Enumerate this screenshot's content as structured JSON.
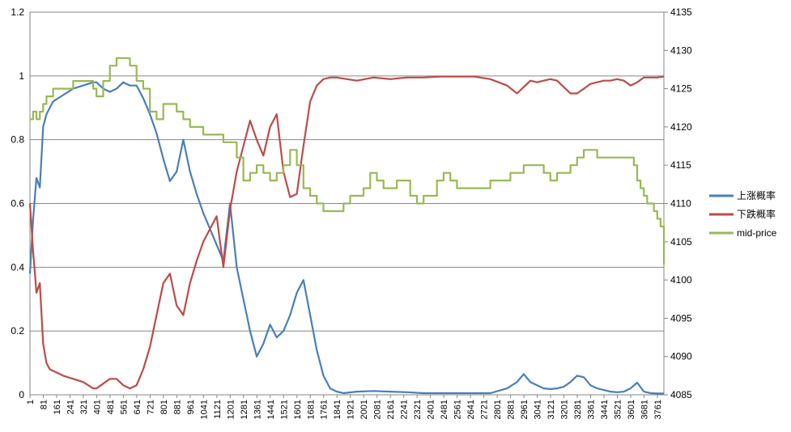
{
  "chart_data": {
    "type": "line",
    "title": "",
    "xlabel": "",
    "ylabel": "",
    "x_tick_labels": [
      "1",
      "81",
      "161",
      "241",
      "321",
      "401",
      "481",
      "561",
      "641",
      "721",
      "801",
      "881",
      "961",
      "1041",
      "1121",
      "1201",
      "1281",
      "1361",
      "1441",
      "1521",
      "1601",
      "1681",
      "1761",
      "1841",
      "1921",
      "2001",
      "2081",
      "2161",
      "2241",
      "2321",
      "2401",
      "2481",
      "2561",
      "2641",
      "2721",
      "2801",
      "2881",
      "2961",
      "3041",
      "3121",
      "3201",
      "3281",
      "3361",
      "3441",
      "3521",
      "3601",
      "3681",
      "3761"
    ],
    "xlim": [
      1,
      3800
    ],
    "y_left": {
      "lim": [
        0,
        1.2
      ],
      "tick_labels": [
        "0",
        "0.2",
        "0.4",
        "0.6",
        "0.8",
        "1",
        "1.2"
      ]
    },
    "y_right": {
      "lim": [
        4085,
        4135
      ],
      "tick_labels": [
        "4085",
        "4090",
        "4095",
        "4100",
        "4105",
        "4110",
        "4115",
        "4120",
        "4125",
        "4130",
        "4135"
      ]
    },
    "grid": "horizontal",
    "legend_position": "right",
    "series": [
      {
        "name": "上涨概率",
        "color": "#4a7ebb",
        "axis": "left",
        "x": [
          1,
          20,
          40,
          60,
          80,
          100,
          140,
          200,
          260,
          320,
          380,
          400,
          440,
          480,
          520,
          560,
          600,
          640,
          680,
          720,
          760,
          800,
          840,
          880,
          920,
          960,
          1000,
          1040,
          1080,
          1120,
          1160,
          1200,
          1240,
          1280,
          1320,
          1360,
          1400,
          1440,
          1480,
          1520,
          1560,
          1600,
          1640,
          1680,
          1720,
          1760,
          1800,
          1840,
          1880,
          1960,
          2060,
          2160,
          2260,
          2360,
          2460,
          2560,
          2660,
          2760,
          2860,
          2920,
          2960,
          3000,
          3040,
          3080,
          3120,
          3160,
          3200,
          3240,
          3280,
          3320,
          3360,
          3400,
          3440,
          3480,
          3520,
          3560,
          3600,
          3640,
          3680,
          3720,
          3760,
          3800
        ],
        "y": [
          0.38,
          0.55,
          0.68,
          0.65,
          0.84,
          0.88,
          0.92,
          0.94,
          0.96,
          0.97,
          0.98,
          0.98,
          0.96,
          0.95,
          0.96,
          0.98,
          0.97,
          0.97,
          0.93,
          0.88,
          0.82,
          0.74,
          0.67,
          0.7,
          0.8,
          0.7,
          0.63,
          0.57,
          0.52,
          0.47,
          0.42,
          0.6,
          0.4,
          0.3,
          0.2,
          0.12,
          0.16,
          0.22,
          0.18,
          0.2,
          0.25,
          0.32,
          0.36,
          0.25,
          0.14,
          0.06,
          0.02,
          0.01,
          0.005,
          0.01,
          0.012,
          0.01,
          0.008,
          0.005,
          0.005,
          0.005,
          0.005,
          0.005,
          0.02,
          0.04,
          0.065,
          0.04,
          0.03,
          0.02,
          0.018,
          0.02,
          0.025,
          0.04,
          0.06,
          0.055,
          0.03,
          0.02,
          0.015,
          0.01,
          0.008,
          0.01,
          0.02,
          0.038,
          0.01,
          0.005,
          0.004,
          0.004
        ]
      },
      {
        "name": "下跌概率",
        "color": "#be4b48",
        "axis": "left",
        "x": [
          1,
          20,
          40,
          60,
          80,
          100,
          120,
          160,
          200,
          260,
          320,
          380,
          400,
          440,
          480,
          520,
          560,
          600,
          640,
          680,
          720,
          760,
          800,
          840,
          880,
          920,
          960,
          1000,
          1040,
          1080,
          1120,
          1160,
          1200,
          1240,
          1280,
          1320,
          1360,
          1400,
          1440,
          1480,
          1520,
          1560,
          1600,
          1640,
          1680,
          1720,
          1760,
          1800,
          1840,
          1900,
          1960,
          2060,
          2160,
          2260,
          2360,
          2460,
          2560,
          2660,
          2760,
          2860,
          2920,
          2960,
          3000,
          3040,
          3080,
          3120,
          3160,
          3200,
          3240,
          3280,
          3320,
          3360,
          3400,
          3440,
          3480,
          3520,
          3560,
          3600,
          3640,
          3680,
          3720,
          3760,
          3800
        ],
        "y": [
          0.6,
          0.45,
          0.32,
          0.35,
          0.16,
          0.1,
          0.08,
          0.07,
          0.06,
          0.05,
          0.04,
          0.02,
          0.02,
          0.035,
          0.05,
          0.05,
          0.03,
          0.02,
          0.03,
          0.08,
          0.15,
          0.25,
          0.35,
          0.38,
          0.28,
          0.25,
          0.35,
          0.42,
          0.48,
          0.52,
          0.56,
          0.4,
          0.58,
          0.7,
          0.78,
          0.86,
          0.8,
          0.75,
          0.84,
          0.88,
          0.7,
          0.62,
          0.63,
          0.78,
          0.92,
          0.97,
          0.99,
          0.995,
          0.995,
          0.99,
          0.985,
          0.995,
          0.99,
          0.995,
          0.995,
          0.998,
          0.998,
          0.998,
          0.99,
          0.97,
          0.945,
          0.965,
          0.985,
          0.98,
          0.985,
          0.99,
          0.985,
          0.965,
          0.945,
          0.945,
          0.96,
          0.975,
          0.98,
          0.985,
          0.985,
          0.99,
          0.985,
          0.97,
          0.98,
          0.995,
          0.995,
          0.995,
          0.998
        ]
      },
      {
        "name": "mid-price",
        "color": "#98b954",
        "axis": "right",
        "x": [
          1,
          20,
          40,
          60,
          80,
          100,
          140,
          200,
          260,
          320,
          380,
          400,
          440,
          480,
          520,
          560,
          600,
          640,
          680,
          720,
          760,
          800,
          840,
          880,
          920,
          960,
          1000,
          1040,
          1080,
          1120,
          1160,
          1200,
          1240,
          1280,
          1320,
          1360,
          1400,
          1440,
          1480,
          1520,
          1560,
          1600,
          1640,
          1680,
          1720,
          1760,
          1800,
          1840,
          1880,
          1920,
          1960,
          2000,
          2040,
          2080,
          2120,
          2160,
          2200,
          2240,
          2280,
          2320,
          2360,
          2400,
          2440,
          2480,
          2520,
          2560,
          2600,
          2640,
          2680,
          2720,
          2760,
          2800,
          2840,
          2880,
          2920,
          2960,
          3000,
          3040,
          3080,
          3120,
          3160,
          3200,
          3240,
          3280,
          3320,
          3360,
          3400,
          3440,
          3480,
          3520,
          3560,
          3600,
          3620,
          3640,
          3660,
          3680,
          3700,
          3720,
          3740,
          3760,
          3780,
          3800
        ],
        "y": [
          4121,
          4122,
          4121,
          4122,
          4123,
          4124,
          4125,
          4125,
          4126,
          4126,
          4125,
          4124,
          4126,
          4128,
          4129,
          4129,
          4128,
          4126,
          4125,
          4122,
          4121,
          4123,
          4123,
          4122,
          4121,
          4120,
          4120,
          4119,
          4119,
          4119,
          4118,
          4118,
          4116,
          4113,
          4114,
          4115,
          4114,
          4113,
          4114,
          4115,
          4117,
          4115,
          4112,
          4111,
          4110,
          4109,
          4109,
          4109,
          4110,
          4111,
          4111,
          4112,
          4114,
          4113,
          4112,
          4112,
          4113,
          4113,
          4111,
          4110,
          4111,
          4111,
          4113,
          4114,
          4113,
          4112,
          4112,
          4112,
          4112,
          4112,
          4113,
          4113,
          4113,
          4114,
          4114,
          4115,
          4115,
          4115,
          4114,
          4113,
          4114,
          4114,
          4115,
          4116,
          4117,
          4117,
          4116,
          4116,
          4116,
          4116,
          4116,
          4116,
          4115,
          4113,
          4112,
          4111,
          4110,
          4110,
          4109,
          4108,
          4107,
          4102
        ]
      }
    ]
  }
}
